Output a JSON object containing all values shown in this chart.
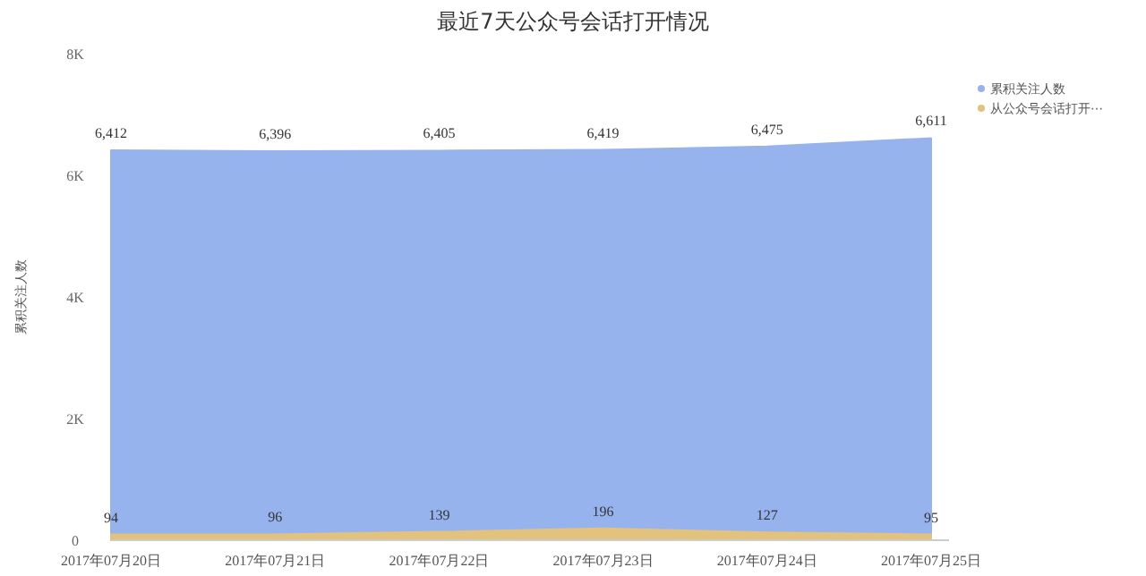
{
  "chart_data": {
    "type": "area",
    "title": "最近7天公众号会话打开情况",
    "ylabel": "累积关注人数",
    "categories": [
      "2017年07月20日",
      "2017年07月21日",
      "2017年07月22日",
      "2017年07月23日",
      "2017年07月24日",
      "2017年07月25日"
    ],
    "series": [
      {
        "name": "累积关注人数",
        "color": "#97b3ee",
        "values": [
          6412,
          6396,
          6405,
          6419,
          6475,
          6611
        ],
        "value_labels": [
          "6,412",
          "6,396",
          "6,405",
          "6,419",
          "6,475",
          "6,611"
        ]
      },
      {
        "name": "从公众号会话打开⋯",
        "color": "#e3c27e",
        "values": [
          94,
          96,
          139,
          196,
          127,
          95
        ],
        "value_labels": [
          "94",
          "96",
          "139",
          "196",
          "127",
          "95"
        ]
      }
    ],
    "ylim": [
      0,
      8000
    ],
    "yticks": [
      {
        "value": 0,
        "label": "0"
      },
      {
        "value": 2000,
        "label": "2K"
      },
      {
        "value": 4000,
        "label": "4K"
      },
      {
        "value": 6000,
        "label": "6K"
      },
      {
        "value": 8000,
        "label": "8K"
      }
    ],
    "legend": "top right"
  }
}
